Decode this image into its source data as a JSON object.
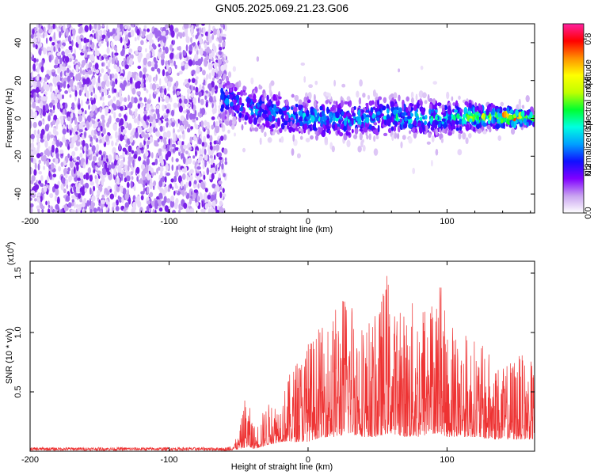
{
  "figure": {
    "title": "GN05.2025.069.21.23.G06"
  },
  "chart_data": [
    {
      "type": "heatmap",
      "title": "GN05.2025.069.21.23.G06",
      "xlabel": "Height of straight line (km)",
      "ylabel": "Frequency (Hz)",
      "xlim": [
        -200,
        163
      ],
      "ylim": [
        -50,
        50
      ],
      "xticks": [
        -200,
        -100,
        0,
        100
      ],
      "yticks": [
        -40,
        -20,
        0,
        20,
        40
      ],
      "colorbar": {
        "label": "Normalized spectral amplitude",
        "range": [
          0.0,
          0.87
        ],
        "ticks": [
          0.0,
          0.2,
          0.4,
          0.6,
          0.8
        ],
        "colormap": [
          "#ffffff",
          "#c8a2f0",
          "#8000ff",
          "#1010ff",
          "#00a0ff",
          "#00ffe0",
          "#00ff30",
          "#c0ff00",
          "#ffff00",
          "#ff9000",
          "#ff0000",
          "#ff20a0"
        ]
      },
      "regions": [
        {
          "name": "noise",
          "x_range": [
            -200,
            -62
          ],
          "y_range": [
            -50,
            50
          ],
          "amplitude": 0.05
        },
        {
          "name": "signal",
          "x_range": [
            -62,
            163
          ],
          "center_freq_hz": [
            [
              -60,
              10
            ],
            [
              -40,
              5
            ],
            [
              -20,
              2
            ],
            [
              0,
              1
            ],
            [
              20,
              -1
            ],
            [
              50,
              1
            ],
            [
              100,
              0
            ],
            [
              130,
              1
            ],
            [
              163,
              0
            ]
          ],
          "halfwidth_hz": [
            [
              -60,
              12
            ],
            [
              0,
              10
            ],
            [
              100,
              9
            ],
            [
              140,
              5
            ],
            [
              163,
              4
            ]
          ],
          "peak_amplitude": [
            [
              -60,
              0.3
            ],
            [
              0,
              0.35
            ],
            [
              100,
              0.4
            ],
            [
              130,
              0.55
            ],
            [
              145,
              0.85
            ],
            [
              163,
              0.5
            ]
          ]
        }
      ]
    },
    {
      "type": "line",
      "xlabel": "Height of straight line (km)",
      "ylabel": "SNR (10 * v/v)",
      "y_multiplier": "(x10^4)",
      "xlim": [
        -200,
        163
      ],
      "ylim": [
        0,
        1.6
      ],
      "xticks": [
        -200,
        -100,
        0,
        100
      ],
      "yticks": [
        0.5,
        1.0,
        1.5
      ],
      "color": "#ee3333",
      "envelope": {
        "x": [
          -200,
          -100,
          -60,
          -50,
          -45,
          -38,
          -30,
          -20,
          -10,
          0,
          10,
          20,
          30,
          40,
          50,
          57,
          60,
          70,
          80,
          90,
          95,
          100,
          110,
          120,
          130,
          140,
          150,
          160,
          163
        ],
        "peak": [
          0.02,
          0.02,
          0.03,
          0.12,
          0.5,
          0.2,
          0.4,
          0.45,
          0.75,
          0.95,
          1.05,
          1.25,
          1.45,
          1.1,
          1.15,
          1.58,
          1.2,
          1.2,
          1.35,
          1.35,
          1.5,
          1.05,
          1.05,
          0.95,
          0.85,
          0.7,
          0.85,
          0.75,
          0.8
        ],
        "floor": [
          0.0,
          0.0,
          0.0,
          0.02,
          0.03,
          0.02,
          0.05,
          0.08,
          0.08,
          0.08,
          0.12,
          0.12,
          0.15,
          0.12,
          0.12,
          0.15,
          0.15,
          0.12,
          0.12,
          0.15,
          0.15,
          0.12,
          0.12,
          0.12,
          0.1,
          0.1,
          0.1,
          0.1,
          0.1
        ]
      }
    }
  ],
  "labels": {
    "top_xlabel": "Height of straight line (km)",
    "top_ylabel": "Frequency (Hz)",
    "colorbar_label": "Normalized spectral amplitude",
    "bottom_xlabel": "Height of straight line (km)",
    "bottom_ylabel": "SNR (10 * v/v)",
    "multiplier_base": "(x10",
    "multiplier_exp": "4",
    "multiplier_close": ")"
  }
}
